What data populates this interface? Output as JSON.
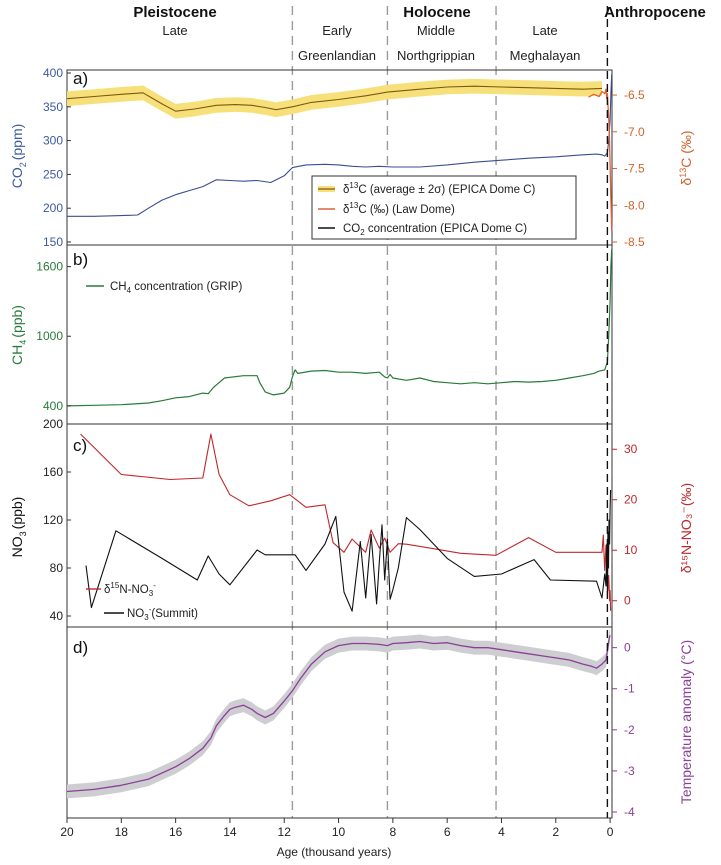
{
  "chart_data": {
    "type": "line",
    "xlabel": "Age (thousand years)",
    "xlim": [
      20,
      -0.07
    ],
    "x_ticks": [
      20,
      18,
      16,
      14,
      12,
      10,
      8,
      6,
      4,
      2,
      0
    ],
    "epochs": {
      "pleistocene": "Pleistocene",
      "pleistocene_sub": "Late",
      "holocene": "Holocene",
      "early": "Early",
      "middle": "Middle",
      "late": "Late",
      "greenlandian": "Greenlandian",
      "northgrippian": "Northgrippian",
      "meghalayan": "Meghalayan",
      "anthropocene": "Anthropocene"
    },
    "boundaries": [
      11.7,
      8.2,
      4.2
    ],
    "anthropocene_boundary": 0.1,
    "panels": [
      {
        "id": "a",
        "label": "a)",
        "ylabel": "CO2 (ppm)",
        "ylabel_main": "CO",
        "ylabel_sub": "2",
        "ylabel_tail": "(ppm)",
        "ylim": [
          150,
          400
        ],
        "y_ticks": [
          150,
          200,
          250,
          300,
          350,
          400
        ],
        "y2label": "δ13C (‰)",
        "y2label_pre": "δ",
        "y2label_sup": "13",
        "y2label_tail": "C (‰)",
        "y2lim": [
          -8.5,
          -6.2
        ],
        "y2_ticks": [
          -8.5,
          -8.0,
          -7.5,
          -7.0,
          -6.5
        ],
        "y2_tick_labels": [
          "-8.5",
          "-8.0",
          "-7.5",
          "-7.0",
          "-6.5"
        ],
        "legend": [
          {
            "pre": "δ",
            "sup": "13",
            "tail": "C (average ± 2σ) (EPICA Dome C)"
          },
          {
            "pre": "δ",
            "sup": "13",
            "tail": "C (‰) (Law Dome)"
          },
          {
            "pre": "CO",
            "sub": "2",
            "tail": " concentration (EPICA Dome C)"
          }
        ],
        "series": [
          {
            "name": "δ13C (average ± 2σ) (EPICA Dome C)",
            "axis": "right",
            "color": "#7a5a10",
            "band_color": "#f7e07a",
            "band_halfwidth": 0.1,
            "x": [
              20,
              19,
              18,
              17.2,
              16.5,
              16,
              15.3,
              14.5,
              13.8,
              13.2,
              12.7,
              12.3,
              11.7,
              11,
              10,
              9,
              8.2,
              7,
              6,
              5,
              4,
              3,
              2,
              1,
              0.3
            ],
            "values": [
              -6.55,
              -6.52,
              -6.49,
              -6.47,
              -6.62,
              -6.72,
              -6.69,
              -6.64,
              -6.63,
              -6.64,
              -6.67,
              -6.7,
              -6.66,
              -6.6,
              -6.56,
              -6.51,
              -6.46,
              -6.42,
              -6.39,
              -6.38,
              -6.39,
              -6.4,
              -6.41,
              -6.42,
              -6.41
            ]
          },
          {
            "name": "δ13C (‰) (Law Dome)",
            "axis": "right",
            "color": "#e0603a",
            "x": [
              0.8,
              0.6,
              0.4,
              0.3,
              0.2,
              0.15,
              0.12,
              0.1,
              0.08,
              0.06,
              0.04,
              0.02,
              0.0,
              -0.02,
              -0.04,
              -0.06
            ],
            "values": [
              -6.53,
              -6.49,
              -6.52,
              -6.45,
              -6.48,
              -6.42,
              -6.55,
              -6.48,
              -6.62,
              -6.75,
              -6.9,
              -7.15,
              -7.45,
              -7.75,
              -8.05,
              -8.35
            ]
          },
          {
            "name": "CO2 concentration (EPICA Dome C)",
            "axis": "left",
            "color": "#3b4f8f",
            "x": [
              20,
              19,
              18,
              17.4,
              17,
              16.5,
              16,
              15.5,
              15,
              14.7,
              14.5,
              14,
              13.5,
              13,
              12.5,
              12,
              11.7,
              11.2,
              10.5,
              10,
              9.5,
              9,
              8.5,
              8,
              7,
              6,
              5,
              4,
              3,
              2,
              1,
              0.5,
              0.3,
              0.2,
              0.1,
              0.05,
              0.0,
              -0.03,
              -0.06
            ],
            "values": [
              188,
              188,
              189,
              190,
              200,
              212,
              220,
              226,
              232,
              238,
              242,
              241,
              240,
              241,
              238,
              248,
              260,
              264,
              265,
              264,
              262,
              261,
              262,
              261,
              261,
              264,
              268,
              271,
              274,
              276,
              279,
              280,
              279,
              277,
              282,
              300,
              330,
              370,
              398
            ]
          }
        ]
      },
      {
        "id": "b",
        "label": "b)",
        "ylabel": "CH4 (ppb)",
        "ylabel_main": "CH",
        "ylabel_sub": "4",
        "ylabel_tail": "(ppb)",
        "ylim": [
          330,
          1700
        ],
        "y_ticks": [
          400,
          1000,
          1600
        ],
        "legend": [
          {
            "pre": "CH",
            "sub": "4",
            "tail": " concentration (GRIP)"
          }
        ],
        "series": [
          {
            "name": "CH4 concentration (GRIP)",
            "color": "#2a7a3a",
            "x": [
              20,
              19,
              18,
              17,
              16.5,
              16,
              15.5,
              15,
              14.8,
              14.6,
              14.2,
              13.5,
              13,
              12.9,
              12.7,
              12.4,
              12,
              11.8,
              11.7,
              11.6,
              11.5,
              11,
              10.5,
              10,
              9.5,
              9,
              8.5,
              8.3,
              8.2,
              8.1,
              8,
              7.5,
              7,
              6.5,
              6,
              5.5,
              5,
              4.5,
              4,
              3.5,
              3,
              2.5,
              2,
              1.5,
              1,
              0.6,
              0.4,
              0.2,
              0.1,
              0.05,
              0.0,
              -0.03,
              -0.06
            ],
            "values": [
              400,
              405,
              410,
              425,
              445,
              470,
              480,
              510,
              505,
              560,
              640,
              660,
              660,
              600,
              520,
              495,
              510,
              560,
              650,
              710,
              680,
              700,
              705,
              690,
              690,
              680,
              690,
              650,
              640,
              670,
              640,
              620,
              640,
              610,
              600,
              590,
              600,
              590,
              600,
              610,
              605,
              610,
              620,
              640,
              660,
              680,
              700,
              710,
              780,
              1000,
              1300,
              1600,
              1750
            ]
          }
        ]
      },
      {
        "id": "c",
        "label": "c)",
        "ylabel": "NO3- (ppb)",
        "ylabel_main": "NO",
        "ylabel_sub": "3",
        "ylabel_tail": "(ppb)",
        "ylim": [
          30,
          200
        ],
        "y_ticks": [
          40,
          80,
          120,
          160,
          200
        ],
        "y2label": "δ15N-NO3- (‰)",
        "y2label_text": "δ¹⁵N-NO₃⁻(‰)",
        "y2lim": [
          -5.4,
          35
        ],
        "y2_ticks": [
          0,
          10,
          20,
          30
        ],
        "y2_tick_labels": [
          "0",
          "10",
          "20",
          "30"
        ],
        "legend": [
          {
            "pre": "δ",
            "sup": "15",
            "tail": "N-NO",
            "sub2": "3",
            "sup2": "-"
          },
          {
            "pre": "NO",
            "sub": "3",
            "sup": "-",
            "tail": "(Summit)"
          }
        ],
        "series": [
          {
            "name": "δ15N-NO3-",
            "axis": "right",
            "color": "#c0282c",
            "x": [
              19.5,
              18,
              16.2,
              15.0,
              14.7,
              14.4,
              14,
              13.3,
              12.5,
              11.8,
              11.2,
              10.5,
              10.2,
              9.8,
              9.5,
              9,
              8.8,
              8.5,
              8.3,
              8.1,
              7.8,
              7.5,
              6.5,
              5.5,
              4.2,
              3.0,
              2.0,
              1.2,
              0.5,
              0.3,
              0.25,
              0.2,
              0.15,
              0.12,
              0.1,
              0.08,
              0.05,
              0.02,
              0.0,
              -0.02
            ],
            "values": [
              33,
              25,
              24,
              24.3,
              33,
              25,
              21,
              18.8,
              19.8,
              21.0,
              18.5,
              19.0,
              11.5,
              9.6,
              12.2,
              9.6,
              14.0,
              10.4,
              12.4,
              9.6,
              11.3,
              11.2,
              10.3,
              9.4,
              9.0,
              12.5,
              9.6,
              9.6,
              9.6,
              9.6,
              13,
              6,
              11,
              4,
              9,
              2,
              5,
              0,
              2,
              -2
            ]
          },
          {
            "name": "NO3-(Summit)",
            "axis": "left",
            "color": "#111111",
            "x": [
              19.3,
              19.1,
              18.2,
              16.5,
              15.2,
              14.8,
              14.4,
              14.0,
              13.0,
              12.7,
              11.6,
              11.2,
              10.5,
              10.1,
              9.8,
              9.5,
              9.2,
              9.0,
              8.8,
              8.6,
              8.5,
              8.4,
              8.3,
              8.2,
              8.1,
              8.0,
              7.8,
              7.5,
              7.0,
              6.0,
              5.0,
              4.0,
              2.8,
              2.2,
              0.5,
              0.3,
              0.2,
              0.15,
              0.12,
              0.1,
              0.08,
              0.06,
              0.04,
              0.02,
              0.0,
              -0.02
            ],
            "values": [
              82,
              47,
              111,
              88,
              70,
              90,
              75,
              66,
              95,
              91,
              91,
              78,
              100,
              123,
              60,
              44,
              102,
              55,
              108,
              50,
              85,
              116,
              70,
              104,
              54,
              62,
              80,
              122,
              112,
              88,
              73,
              75,
              87,
              70,
              69,
              55,
              75,
              65,
              100,
              60,
              110,
              80,
              120,
              100,
              130,
              145
            ]
          }
        ]
      },
      {
        "id": "d",
        "label": "d)",
        "y2label": "Temperature anomaly (°C)",
        "y2lim": [
          -4,
          0.6
        ],
        "y2_ticks": [
          -4,
          -3,
          -2,
          -1,
          0
        ],
        "y2_tick_labels": [
          "-4",
          "-3",
          "-2",
          "-1",
          "0"
        ],
        "series": [
          {
            "name": "Temperature anomaly",
            "axis": "right",
            "color": "#8b3f96",
            "band_color": "#cdcdd2",
            "band_halfwidth": 0.17,
            "x": [
              20,
              19,
              18,
              17,
              16,
              15.5,
              15,
              14.7,
              14.5,
              14.2,
              14.0,
              13.8,
              13.5,
              13.2,
              13.0,
              12.7,
              12.4,
              12.0,
              11.7,
              11.4,
              11.0,
              10.5,
              10.0,
              9.5,
              9.0,
              8.5,
              8.2,
              8.0,
              7.5,
              7.0,
              6.5,
              6.0,
              5.5,
              5.0,
              4.5,
              4.0,
              3.5,
              3.0,
              2.5,
              2.0,
              1.5,
              1.0,
              0.7,
              0.5,
              0.3,
              0.15,
              0.08,
              0.04,
              0.0
            ],
            "values": [
              -3.5,
              -3.45,
              -3.35,
              -3.2,
              -2.9,
              -2.7,
              -2.45,
              -2.2,
              -1.9,
              -1.65,
              -1.5,
              -1.45,
              -1.4,
              -1.5,
              -1.6,
              -1.7,
              -1.6,
              -1.3,
              -1.05,
              -0.75,
              -0.4,
              -0.1,
              0.05,
              0.1,
              0.1,
              0.08,
              0.05,
              0.1,
              0.12,
              0.15,
              0.1,
              0.12,
              0.05,
              0.0,
              0.0,
              -0.05,
              -0.1,
              -0.15,
              -0.2,
              -0.25,
              -0.3,
              -0.4,
              -0.45,
              -0.5,
              -0.4,
              -0.3,
              0.0,
              0.2,
              0.3
            ]
          }
        ]
      }
    ]
  }
}
